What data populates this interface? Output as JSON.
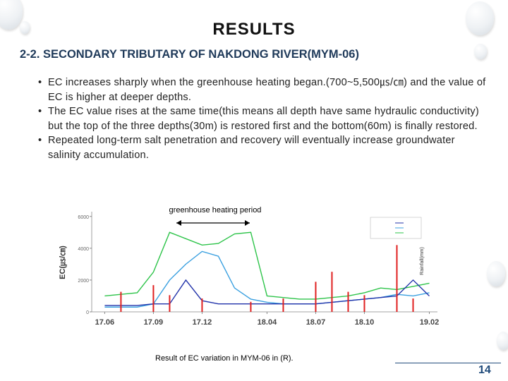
{
  "header": {
    "title": "RESULTS",
    "subtitle": "2-2. SECONDARY TRIBUTARY OF NAKDONG RIVER(MYM-06)"
  },
  "bullets": [
    "EC increases sharply when the greenhouse heating began.(700~5,500㎲/㎝) and the value of EC is higher at deeper depths.",
    "The EC value rises at the same time(this means all depth have same hydraulic conductivity) but the top of the three depths(30m) is restored first and the bottom(60m) is finally restored.",
    "Repeated  long-term salt penetration and recovery will eventually increase groundwater salinity accumulation."
  ],
  "chart_data": {
    "type": "line",
    "annotation": "greenhouse heating period",
    "y_label": "EC(㎲/㎝)",
    "y2_label": "Rainfall(mm)",
    "xlim": [
      -0.8,
      20.5
    ],
    "xticks": [
      {
        "value": 0,
        "label": "17.06"
      },
      {
        "value": 3,
        "label": "17.09"
      },
      {
        "value": 6,
        "label": "17.12"
      },
      {
        "value": 10,
        "label": "18.04"
      },
      {
        "value": 13,
        "label": "18.07"
      },
      {
        "value": 16,
        "label": "18.10"
      },
      {
        "value": 20,
        "label": "19.02"
      }
    ],
    "ylim": [
      0,
      6300
    ],
    "yticks": [
      0,
      2000,
      4000,
      6000
    ],
    "y2lim": [
      0,
      300
    ],
    "grid": false,
    "series": [
      {
        "color": "#2ec44a",
        "x": [
          0,
          1,
          2,
          3,
          4,
          5,
          6,
          7,
          8,
          9,
          10,
          11,
          12,
          13,
          14,
          15,
          16,
          17,
          18,
          19,
          20
        ],
        "values": [
          1000,
          1100,
          1200,
          2500,
          5000,
          4600,
          4200,
          4300,
          4900,
          5000,
          1000,
          900,
          800,
          800,
          900,
          1000,
          1200,
          1500,
          1400,
          1600,
          1800
        ]
      },
      {
        "color": "#3aa0e0",
        "x": [
          0,
          1,
          2,
          3,
          4,
          5,
          6,
          7,
          8,
          9,
          10,
          11,
          12,
          13,
          14,
          15,
          16,
          17,
          18,
          19,
          20
        ],
        "values": [
          300,
          300,
          300,
          500,
          2000,
          3000,
          3800,
          3500,
          1500,
          800,
          600,
          500,
          500,
          500,
          600,
          700,
          800,
          900,
          1100,
          1000,
          1200
        ]
      },
      {
        "color": "#2233aa",
        "x": [
          0,
          1,
          2,
          3,
          4,
          5,
          6,
          7,
          8,
          9,
          10,
          11,
          12,
          13,
          14,
          15,
          16,
          17,
          18,
          19,
          20
        ],
        "values": [
          400,
          400,
          400,
          500,
          500,
          2000,
          700,
          500,
          500,
          500,
          500,
          500,
          500,
          500,
          600,
          700,
          800,
          900,
          1000,
          2000,
          1000
        ]
      },
      {
        "type": "bar",
        "axis": "y2",
        "color": "#e02020",
        "x": [
          1,
          3,
          4,
          6,
          9,
          11,
          13,
          14,
          15,
          16,
          18,
          19
        ],
        "values": [
          60,
          80,
          50,
          40,
          30,
          40,
          90,
          120,
          60,
          50,
          200,
          40
        ]
      }
    ]
  },
  "caption": "Result of EC variation in MYM-06 in (R).",
  "page_number": "14"
}
